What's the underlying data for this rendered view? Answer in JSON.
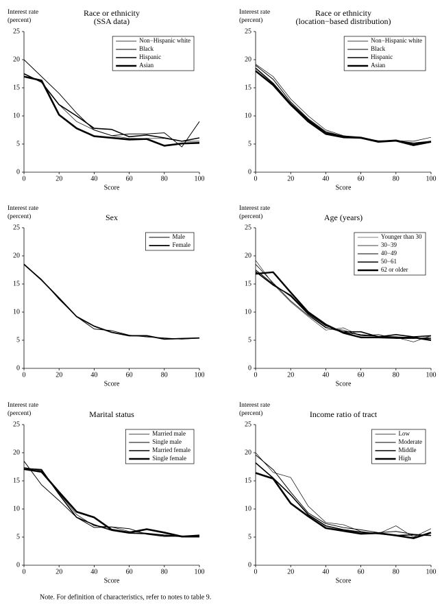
{
  "chart_data": [
    {
      "type": "line",
      "title": [
        "Race or ethnicity",
        "(SSA data)"
      ],
      "ylabel": [
        "Interest rate",
        "(percent)"
      ],
      "xlabel": "Score",
      "x": [
        0,
        10,
        20,
        30,
        40,
        50,
        60,
        70,
        80,
        90,
        100
      ],
      "xlim": [
        0,
        100
      ],
      "xticks": [
        0,
        20,
        40,
        60,
        80,
        100
      ],
      "ylim": [
        0,
        25
      ],
      "yticks": [
        0,
        5,
        10,
        15,
        20,
        25
      ],
      "series": [
        {
          "name": "Non−Hispanic white",
          "color": "#000",
          "values": [
            17.5,
            16,
            12,
            9,
            7.5,
            6.5,
            6,
            6,
            6,
            5.5,
            5.5
          ]
        },
        {
          "name": "Black",
          "color": "#000",
          "values": [
            20,
            17,
            14,
            10.5,
            7.5,
            6.5,
            6.8,
            6.8,
            7,
            4.5,
            9
          ]
        },
        {
          "name": "Hispanic",
          "color": "#000",
          "values": [
            17.5,
            16,
            12,
            10,
            7.8,
            7.6,
            6.3,
            6.6,
            6.1,
            5.5,
            6.1
          ]
        },
        {
          "name": "Asian",
          "color": "#000",
          "values": [
            17,
            16.3,
            10.2,
            7.8,
            6.4,
            6.1,
            5.8,
            5.9,
            4.7,
            5.1,
            5.2
          ]
        }
      ]
    },
    {
      "type": "line",
      "title": [
        "Race or ethnicity",
        "(location−based distribution)"
      ],
      "ylabel": [
        "Interest rate",
        "(percent)"
      ],
      "xlabel": "Score",
      "x": [
        0,
        10,
        20,
        30,
        40,
        50,
        60,
        70,
        80,
        90,
        100
      ],
      "xlim": [
        0,
        100
      ],
      "xticks": [
        0,
        20,
        40,
        60,
        80,
        100
      ],
      "ylim": [
        0,
        25
      ],
      "yticks": [
        0,
        5,
        10,
        15,
        20,
        25
      ],
      "series": [
        {
          "name": "Non−Hispanic white",
          "color": "#000",
          "values": [
            19.2,
            17,
            13,
            10,
            7.5,
            6.5,
            6.1,
            5.6,
            5.6,
            5.5,
            6.2
          ]
        },
        {
          "name": "Black",
          "color": "#000",
          "values": [
            19,
            16.5,
            12.5,
            9.5,
            7.2,
            6.4,
            6.2,
            5.5,
            5.6,
            5.2,
            5.5
          ]
        },
        {
          "name": "Hispanic",
          "color": "#000",
          "values": [
            18.5,
            15.8,
            12.2,
            9.3,
            7,
            6.4,
            6.2,
            5.5,
            5.7,
            5,
            5.5
          ]
        },
        {
          "name": "Asian",
          "color": "#000",
          "values": [
            18,
            15.5,
            12,
            9,
            6.8,
            6.2,
            6.1,
            5.4,
            5.6,
            4.8,
            5.4
          ]
        }
      ]
    },
    {
      "type": "line",
      "title": [
        "Sex"
      ],
      "ylabel": [
        "Interest rate",
        "(percent)"
      ],
      "xlabel": "Score",
      "x": [
        0,
        10,
        20,
        30,
        40,
        50,
        60,
        70,
        80,
        90,
        100
      ],
      "xlim": [
        0,
        100
      ],
      "xticks": [
        0,
        20,
        40,
        60,
        80,
        100
      ],
      "ylim": [
        0,
        25
      ],
      "yticks": [
        0,
        5,
        10,
        15,
        20,
        25
      ],
      "series": [
        {
          "name": "Male",
          "color": "#000",
          "values": [
            18.5,
            15.8,
            12.3,
            9.2,
            7,
            6.7,
            5.9,
            5.6,
            5.4,
            5.2,
            5.4
          ]
        },
        {
          "name": "Female",
          "color": "#000",
          "values": [
            18.5,
            15.7,
            12.5,
            9.2,
            7.5,
            6.4,
            5.8,
            5.8,
            5.2,
            5.3,
            5.4
          ]
        }
      ]
    },
    {
      "type": "line",
      "title": [
        "Age (years)"
      ],
      "ylabel": [
        "Interest rate",
        "(percent)"
      ],
      "xlabel": "Score",
      "x": [
        0,
        10,
        20,
        30,
        40,
        50,
        60,
        70,
        80,
        90,
        100
      ],
      "xlim": [
        0,
        100
      ],
      "xticks": [
        0,
        20,
        40,
        60,
        80,
        100
      ],
      "ylim": [
        0,
        25
      ],
      "yticks": [
        0,
        5,
        10,
        15,
        20,
        25
      ],
      "series": [
        {
          "name": "Younger than 30",
          "color": "#000",
          "values": [
            19.2,
            15,
            11.8,
            9.2,
            6.8,
            7.2,
            5.8,
            5.7,
            5.5,
            4.7,
            5.8
          ]
        },
        {
          "name": "30−39",
          "color": "#000",
          "values": [
            18.5,
            15.2,
            12,
            9.4,
            7.2,
            6.8,
            5.8,
            6,
            5.3,
            5.3,
            5.5
          ]
        },
        {
          "name": "40−49",
          "color": "#000",
          "values": [
            17.5,
            15,
            12.8,
            9.6,
            7.3,
            6.4,
            6,
            5.7,
            5.6,
            5.4,
            5.3
          ]
        },
        {
          "name": "50−61",
          "color": "#000",
          "values": [
            17.2,
            14.8,
            13,
            9.8,
            7.6,
            6.5,
            6.5,
            5.6,
            6,
            5.6,
            5.8
          ]
        },
        {
          "name": "62 or older",
          "color": "#000",
          "values": [
            16.8,
            17.1,
            13.5,
            10,
            7.8,
            6.3,
            5.5,
            5.5,
            5.4,
            5.5,
            5
          ]
        }
      ]
    },
    {
      "type": "line",
      "title": [
        "Marital status"
      ],
      "ylabel": [
        "Interest rate",
        "(percent)"
      ],
      "xlabel": "Score",
      "x": [
        0,
        10,
        20,
        30,
        40,
        50,
        60,
        70,
        80,
        90,
        100
      ],
      "xlim": [
        0,
        100
      ],
      "xticks": [
        0,
        20,
        40,
        60,
        80,
        100
      ],
      "ylim": [
        0,
        25
      ],
      "yticks": [
        0,
        5,
        10,
        15,
        20,
        25
      ],
      "series": [
        {
          "name": "Married male",
          "color": "#000",
          "values": [
            17.4,
            16.8,
            12.8,
            9,
            7,
            6.8,
            6,
            5.7,
            5.4,
            5.2,
            5.4
          ]
        },
        {
          "name": "Single male",
          "color": "#000",
          "values": [
            18.5,
            14.3,
            11.5,
            8.5,
            6.7,
            6.8,
            6.5,
            5.5,
            5.1,
            5.2,
            5
          ]
        },
        {
          "name": "Married female",
          "color": "#000",
          "values": [
            17.2,
            17,
            12.6,
            8.5,
            7.2,
            6.2,
            5.7,
            5.6,
            5.3,
            5.1,
            5.3
          ]
        },
        {
          "name": "Single female",
          "color": "#000",
          "values": [
            17.1,
            16.6,
            13,
            9.5,
            8.5,
            6.3,
            5.8,
            6.4,
            5.8,
            5.1,
            5.1
          ]
        }
      ]
    },
    {
      "type": "line",
      "title": [
        "Income ratio of tract"
      ],
      "ylabel": [
        "Interest rate",
        "(percent)"
      ],
      "xlabel": "Score",
      "x": [
        0,
        10,
        20,
        30,
        40,
        50,
        60,
        70,
        80,
        90,
        100
      ],
      "xlim": [
        0,
        100
      ],
      "xticks": [
        0,
        20,
        40,
        60,
        80,
        100
      ],
      "ylim": [
        0,
        25
      ],
      "yticks": [
        0,
        5,
        10,
        15,
        20,
        25
      ],
      "series": [
        {
          "name": "Low",
          "color": "#000",
          "values": [
            20,
            16.5,
            15.6,
            10.5,
            7.6,
            7.2,
            6,
            5.6,
            7,
            5,
            6.5
          ]
        },
        {
          "name": "Moderate",
          "color": "#000",
          "values": [
            19.6,
            17,
            13,
            9.3,
            7.4,
            6.7,
            6.3,
            5.8,
            6,
            5.5,
            5.3
          ]
        },
        {
          "name": "Middle",
          "color": "#000",
          "values": [
            18.2,
            15.5,
            12.5,
            9,
            7,
            6.3,
            5.9,
            5.6,
            5.3,
            5.4,
            5.3
          ]
        },
        {
          "name": "High",
          "color": "#000",
          "values": [
            16.4,
            15.4,
            11,
            8.7,
            6.6,
            6.1,
            5.6,
            5.7,
            5.3,
            4.8,
            5.8
          ]
        }
      ]
    }
  ],
  "note": "Note. For definition of characteristics, refer to notes to table 9."
}
